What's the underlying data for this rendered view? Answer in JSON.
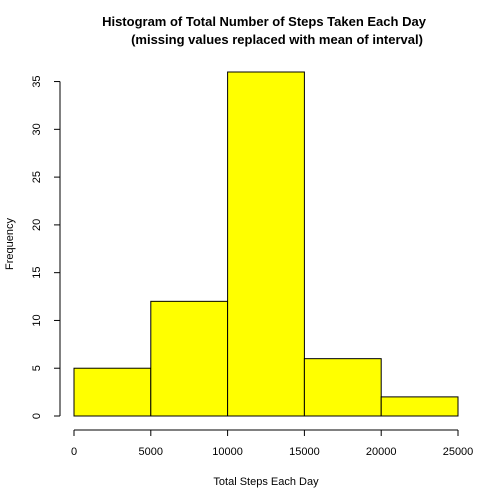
{
  "chart_data": {
    "type": "bar",
    "title_line1": "Histogram of Total Number of Steps Taken Each Day",
    "title_line2": "(missing values replaced with mean of interval)",
    "xlabel": "Total Steps Each Day",
    "ylabel": "Frequency",
    "bins": [
      {
        "from": 0,
        "to": 5000,
        "count": 5
      },
      {
        "from": 5000,
        "to": 10000,
        "count": 12
      },
      {
        "from": 10000,
        "to": 15000,
        "count": 36
      },
      {
        "from": 15000,
        "to": 20000,
        "count": 6
      },
      {
        "from": 20000,
        "to": 25000,
        "count": 2
      }
    ],
    "xlim": [
      0,
      25000
    ],
    "ylim": [
      0,
      36
    ],
    "xticks": [
      0,
      5000,
      10000,
      15000,
      20000,
      25000
    ],
    "yticks": [
      0,
      5,
      10,
      15,
      20,
      25,
      30,
      35
    ],
    "bar_color": "#ffff00",
    "grid": false
  }
}
